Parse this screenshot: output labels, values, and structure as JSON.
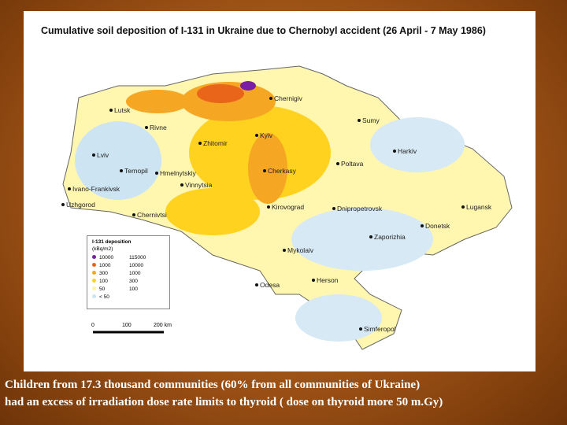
{
  "title": "Cumulative soil deposition of I-131 in Ukraine due to Chernobyl accident (26 April - 7 May 1986)",
  "cities": [
    "Lutsk",
    "Rivne",
    "Zhitomir",
    "Kyiv",
    "Chernigiv",
    "Sumy",
    "Harkiv",
    "Poltava",
    "Cherkasy",
    "Vinnytsia",
    "Lviv",
    "Ternopil",
    "Hmelnytskiy",
    "Ivano-Frankivsk",
    "Uzhgorod",
    "Chernivtsi",
    "Kirovograd",
    "Dnipropetrovsk",
    "Lugansk",
    "Donetsk",
    "Zaporizhia",
    "Mykolaiv",
    "Odesa",
    "Herson",
    "Simferopol"
  ],
  "legend": {
    "title": "I-131 deposition",
    "unit": "(kBq/m2)",
    "rows": [
      {
        "from": "10000",
        "to": "115000",
        "color": "#7b1fa2"
      },
      {
        "from": "1000",
        "to": "10000",
        "color": "#e8651a"
      },
      {
        "from": "300",
        "to": "1000",
        "color": "#f5a623"
      },
      {
        "from": "100",
        "to": "300",
        "color": "#ffd21f"
      },
      {
        "from": "50",
        "to": "100",
        "color": "#fff3a0"
      },
      {
        "from": "< 50",
        "to": "",
        "color": "#cde4f2"
      }
    ]
  },
  "scale": [
    "0",
    "100",
    "200 km"
  ],
  "caption": [
    "Children from 17.3 thousand communities  (60% from all communities of Ukraine)",
    "had an excess of irradiation dose rate limits to thyroid ( dose on thyroid more 50 m.Gy)"
  ]
}
